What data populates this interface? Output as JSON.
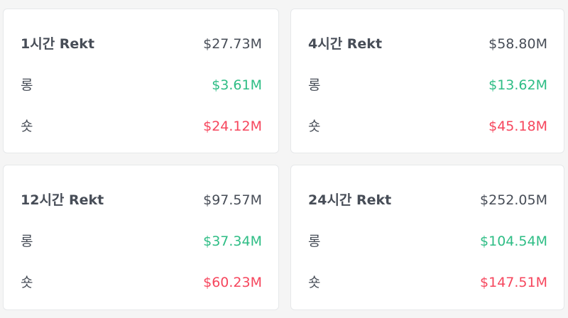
{
  "colors": {
    "text": "#474d57",
    "positive": "#2ebd85",
    "negative": "#f6465d",
    "card_bg": "#ffffff",
    "page_bg": "#f5f5f5"
  },
  "cards": [
    {
      "title": "1시간 Rekt",
      "total": "$27.73M",
      "long_label": "롱",
      "long_value": "$3.61M",
      "short_label": "숏",
      "short_value": "$24.12M"
    },
    {
      "title": "4시간 Rekt",
      "total": "$58.80M",
      "long_label": "롱",
      "long_value": "$13.62M",
      "short_label": "숏",
      "short_value": "$45.18M"
    },
    {
      "title": "12시간 Rekt",
      "total": "$97.57M",
      "long_label": "롱",
      "long_value": "$37.34M",
      "short_label": "숏",
      "short_value": "$60.23M"
    },
    {
      "title": "24시간 Rekt",
      "total": "$252.05M",
      "long_label": "롱",
      "long_value": "$104.54M",
      "short_label": "숏",
      "short_value": "$147.51M"
    }
  ]
}
